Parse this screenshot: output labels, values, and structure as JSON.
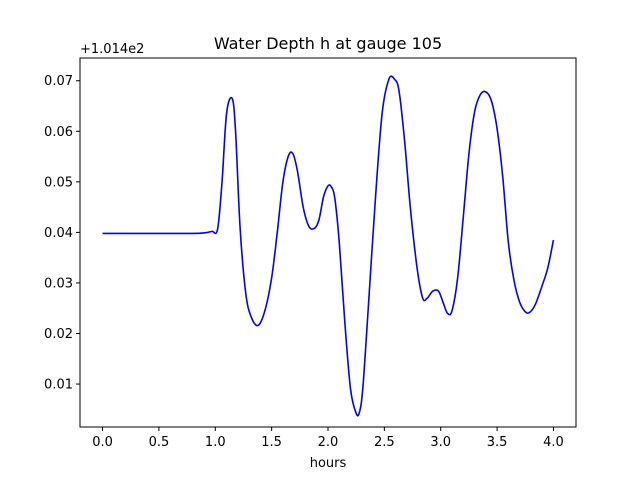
{
  "chart_data": {
    "type": "line",
    "title": "Water Depth h at gauge 105",
    "xlabel": "hours",
    "ylabel": "",
    "offset_label": "+1.014e2",
    "xlim": [
      -0.2,
      4.2
    ],
    "ylim": [
      0.0015,
      0.0745
    ],
    "xticks": [
      0.0,
      0.5,
      1.0,
      1.5,
      2.0,
      2.5,
      3.0,
      3.5,
      4.0
    ],
    "xtick_labels": [
      "0.0",
      "0.5",
      "1.0",
      "1.5",
      "2.0",
      "2.5",
      "3.0",
      "3.5",
      "4.0"
    ],
    "yticks": [
      0.01,
      0.02,
      0.03,
      0.04,
      0.05,
      0.06,
      0.07
    ],
    "ytick_labels": [
      "0.01",
      "0.02",
      "0.03",
      "0.04",
      "0.05",
      "0.06",
      "0.07"
    ],
    "grid": false,
    "line_color": "#0000ff",
    "series": [
      {
        "x": [
          0.0,
          0.2,
          0.4,
          0.6,
          0.8,
          0.9,
          0.97,
          1.02,
          1.06,
          1.1,
          1.15,
          1.18,
          1.22,
          1.27,
          1.32,
          1.38,
          1.44,
          1.5,
          1.55,
          1.6,
          1.65,
          1.69,
          1.73,
          1.78,
          1.83,
          1.88,
          1.92,
          1.96,
          2.0,
          2.03,
          2.06,
          2.1,
          2.15,
          2.2,
          2.25,
          2.28,
          2.31,
          2.36,
          2.42,
          2.48,
          2.54,
          2.59,
          2.63,
          2.68,
          2.73,
          2.79,
          2.84,
          2.88,
          2.93,
          2.98,
          3.02,
          3.06,
          3.1,
          3.15,
          3.2,
          3.25,
          3.3,
          3.35,
          3.4,
          3.45,
          3.5,
          3.55,
          3.6,
          3.65,
          3.7,
          3.75,
          3.79,
          3.84,
          3.9,
          3.95,
          4.0
        ],
        "y": [
          0.0398,
          0.0398,
          0.0398,
          0.0398,
          0.0398,
          0.0399,
          0.0402,
          0.0406,
          0.05,
          0.0635,
          0.0665,
          0.06,
          0.041,
          0.028,
          0.0232,
          0.0216,
          0.0245,
          0.031,
          0.04,
          0.05,
          0.0552,
          0.0555,
          0.052,
          0.045,
          0.0412,
          0.0408,
          0.0425,
          0.047,
          0.0492,
          0.049,
          0.0468,
          0.038,
          0.022,
          0.009,
          0.0042,
          0.0045,
          0.0095,
          0.026,
          0.0465,
          0.0635,
          0.0703,
          0.0703,
          0.068,
          0.058,
          0.045,
          0.033,
          0.027,
          0.027,
          0.0284,
          0.0284,
          0.0262,
          0.024,
          0.0245,
          0.031,
          0.043,
          0.0555,
          0.0638,
          0.0672,
          0.0678,
          0.066,
          0.0605,
          0.051,
          0.038,
          0.0305,
          0.0262,
          0.0243,
          0.0242,
          0.0258,
          0.0295,
          0.033,
          0.0385
        ]
      }
    ]
  }
}
